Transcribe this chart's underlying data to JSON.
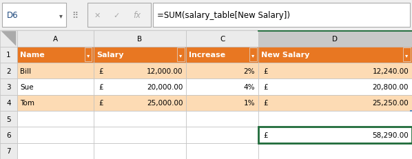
{
  "formula_bar_cell": "D6",
  "formula_bar_formula": "=SUM(salary_table[New Salary])",
  "col_headers": [
    "A",
    "B",
    "C",
    "D"
  ],
  "table_headers": [
    "Name",
    "Salary",
    "Increase",
    "New Salary"
  ],
  "rows": [
    [
      "Bill",
      "£",
      "12,000.00",
      "2%",
      "£",
      "12,240.00"
    ],
    [
      "Sue",
      "£",
      "20,000.00",
      "4%",
      "£",
      "20,800.00"
    ],
    [
      "Tom",
      "£",
      "25,000.00",
      "1%",
      "£",
      "25,250.00"
    ]
  ],
  "sum_currency": "£",
  "sum_value": "58,290.00",
  "header_fill": "#E87722",
  "header_text": "#FFFFFF",
  "data_fill_alt": "#FADADD",
  "data_fill_white": "#FFFFFF",
  "light_orange_row": "#FCCBA0",
  "cell_selected_border": "#1F6B3A",
  "toolbar_bg": "#F0F0F0",
  "grid_line_color": "#C0C0C0",
  "row_col_header_bg": "#EBEBEB",
  "col_header_selected_bg": "#C8C8C8",
  "text_color": "#000000",
  "font_size": 7.5,
  "header_font_size": 8.0,
  "formula_font_size": 8.5,
  "cell_name_color": "#1F497D"
}
